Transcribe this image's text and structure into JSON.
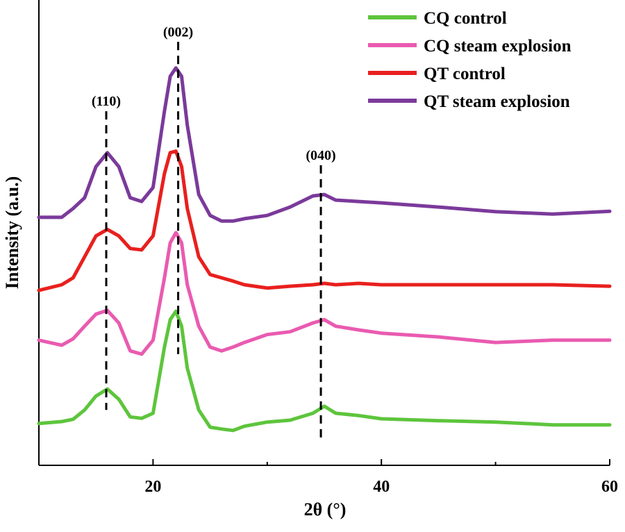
{
  "chart_data": {
    "type": "line",
    "x_label": "2θ (°)",
    "y_label": "Intensity (a.u.)",
    "x": [
      10,
      12,
      13,
      14,
      15,
      16,
      17,
      18,
      19,
      20,
      21,
      21.5,
      22,
      22.5,
      23,
      24,
      25,
      26,
      27,
      28,
      30,
      32,
      34,
      35,
      36,
      38,
      40,
      45,
      50,
      55,
      60
    ],
    "xlim": [
      10,
      60
    ],
    "xticks": [
      20,
      40,
      60
    ],
    "xminorticks": [
      30,
      50
    ],
    "ylim": [
      0,
      100
    ],
    "legend": "upper right",
    "series": [
      {
        "name": "CQ control",
        "color": "#5dc53c",
        "values": [
          9.0,
          9.4,
          9.9,
          11.9,
          14.9,
          16.4,
          14.2,
          10.4,
          10.1,
          11.2,
          25.4,
          31.3,
          33.1,
          29.9,
          20.9,
          11.9,
          8.2,
          7.8,
          7.5,
          8.4,
          9.3,
          9.7,
          11.2,
          12.7,
          11.2,
          10.7,
          10.0,
          9.6,
          9.3,
          8.7,
          8.7
        ]
      },
      {
        "name": "CQ steam explosion",
        "color": "#e95bb0",
        "values": [
          26.9,
          25.8,
          27.2,
          29.9,
          32.5,
          33.3,
          30.6,
          24.6,
          23.9,
          26.9,
          40.3,
          47.8,
          50.0,
          47.8,
          38.8,
          29.9,
          25.4,
          24.6,
          25.4,
          26.4,
          28.1,
          28.7,
          30.6,
          31.3,
          29.9,
          29.1,
          28.4,
          27.6,
          26.4,
          26.9,
          26.9
        ]
      },
      {
        "name": "QT control",
        "color": "#e8201e",
        "values": [
          37.6,
          38.8,
          40.3,
          44.8,
          49.3,
          50.7,
          49.3,
          46.6,
          46.3,
          49.3,
          62.7,
          67.2,
          67.5,
          64.2,
          55.2,
          44.8,
          41.0,
          40.3,
          39.6,
          38.8,
          38.1,
          38.5,
          38.8,
          39.1,
          38.8,
          39.1,
          38.8,
          38.8,
          38.8,
          38.8,
          38.5
        ]
      },
      {
        "name": "QT steam explosion",
        "color": "#7b3a9b",
        "values": [
          53.3,
          53.3,
          55.2,
          57.5,
          64.2,
          67.2,
          64.2,
          57.5,
          56.7,
          59.7,
          76.1,
          83.6,
          85.4,
          83.6,
          73.1,
          58.2,
          53.7,
          52.5,
          52.5,
          53.0,
          53.7,
          55.5,
          57.9,
          58.2,
          57.0,
          56.7,
          56.4,
          55.5,
          54.5,
          54.0,
          54.6
        ]
      }
    ],
    "annotations": [
      {
        "text": "(110)",
        "x": 15.9,
        "y_top": 76.1,
        "y_bottom": 11.9
      },
      {
        "text": "(002)",
        "x": 22.2,
        "y_top": 91.0,
        "y_bottom": 23.9
      },
      {
        "text": "(040)",
        "x": 34.7,
        "y_top": 64.5,
        "y_bottom": 5.2
      }
    ]
  }
}
